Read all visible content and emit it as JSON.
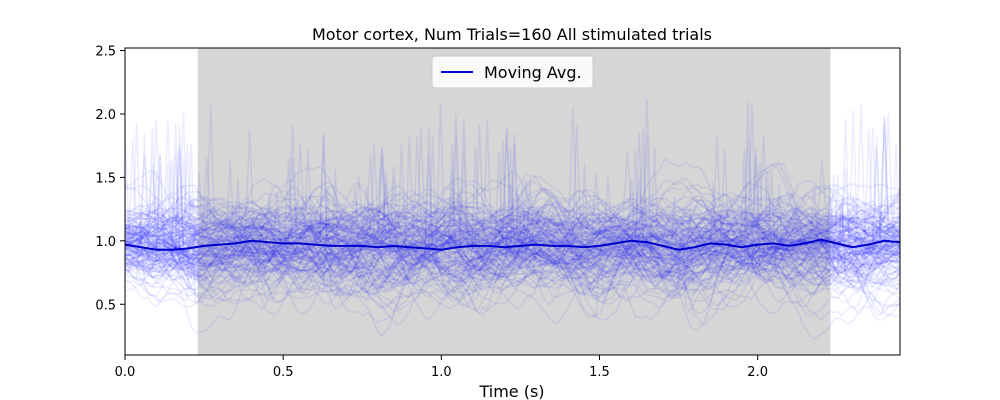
{
  "chart_data": {
    "type": "line",
    "title": "Motor cortex, Num Trials=160 All stimulated trials",
    "xlabel": "Time (s)",
    "ylabel": "",
    "xlim": [
      0.0,
      2.45
    ],
    "ylim": [
      0.1,
      2.52
    ],
    "x_ticks": [
      0.0,
      0.5,
      1.0,
      1.5,
      2.0
    ],
    "x_tick_labels": [
      "0.0",
      "0.5",
      "1.0",
      "1.5",
      "2.0"
    ],
    "y_ticks": [
      0.5,
      1.0,
      1.5,
      2.0,
      2.5
    ],
    "y_tick_labels": [
      "0.5",
      "1.0",
      "1.5",
      "2.0",
      "2.5"
    ],
    "grid": false,
    "legend": {
      "position": "top-center",
      "entries": [
        "Moving Avg."
      ]
    },
    "stimulation_window": {
      "start": 0.23,
      "end": 2.23,
      "color": "#d6d6d6"
    },
    "num_trials": 160,
    "trial_color": "#0000ff",
    "series": [
      {
        "name": "Moving Avg.",
        "color": "#0000cc",
        "x": [
          0.0,
          0.05,
          0.1,
          0.15,
          0.2,
          0.25,
          0.3,
          0.35,
          0.4,
          0.45,
          0.5,
          0.55,
          0.6,
          0.65,
          0.7,
          0.75,
          0.8,
          0.85,
          0.9,
          0.95,
          1.0,
          1.05,
          1.1,
          1.15,
          1.2,
          1.25,
          1.3,
          1.35,
          1.4,
          1.45,
          1.5,
          1.55,
          1.6,
          1.65,
          1.7,
          1.75,
          1.8,
          1.85,
          1.9,
          1.95,
          2.0,
          2.05,
          2.1,
          2.15,
          2.2,
          2.25,
          2.3,
          2.35,
          2.4,
          2.45
        ],
        "values": [
          0.97,
          0.95,
          0.93,
          0.93,
          0.94,
          0.96,
          0.97,
          0.98,
          1.0,
          0.99,
          0.98,
          0.98,
          0.97,
          0.96,
          0.96,
          0.96,
          0.95,
          0.96,
          0.95,
          0.94,
          0.93,
          0.95,
          0.96,
          0.96,
          0.95,
          0.96,
          0.97,
          0.96,
          0.96,
          0.95,
          0.96,
          0.98,
          1.0,
          0.99,
          0.96,
          0.93,
          0.95,
          0.98,
          0.97,
          0.95,
          0.97,
          0.98,
          0.96,
          0.98,
          1.01,
          0.98,
          0.95,
          0.97,
          1.0,
          0.99
        ]
      }
    ]
  }
}
